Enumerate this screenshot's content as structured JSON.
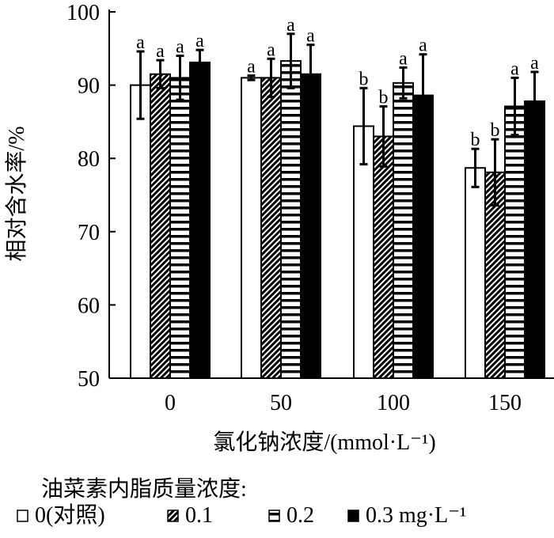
{
  "chart_data": {
    "type": "bar",
    "xlabel": "氯化钠浓度/(mmol·L⁻¹)",
    "ylabel": "相对含水率/%",
    "categories": [
      "0",
      "50",
      "100",
      "150"
    ],
    "ylim": [
      50,
      100
    ],
    "yticks": [
      "50",
      "60",
      "70",
      "80",
      "90",
      "100"
    ],
    "grid": false,
    "legend_title": "油菜素内脂质量浓度:",
    "legend_unit": "mg·L⁻¹",
    "legend_placement": "bottom",
    "series": [
      {
        "name": "0(对照)",
        "pattern": "white",
        "values": [
          90.0,
          91.0,
          84.4,
          78.7
        ],
        "errors": [
          4.6,
          0.3,
          5.2,
          2.6
        ],
        "letters": [
          "a",
          "a",
          "b",
          "b"
        ]
      },
      {
        "name": "0.1",
        "pattern": "diagonal",
        "values": [
          91.5,
          91.0,
          83.0,
          78.1
        ],
        "errors": [
          1.9,
          2.6,
          4.1,
          4.5
        ],
        "letters": [
          "a",
          "a",
          "b",
          "b"
        ]
      },
      {
        "name": "0.2",
        "pattern": "horizontal",
        "values": [
          91.0,
          93.3,
          90.3,
          87.1
        ],
        "errors": [
          3.0,
          3.7,
          2.1,
          3.9
        ],
        "letters": [
          "a",
          "a",
          "a",
          "a"
        ]
      },
      {
        "name": "0.3",
        "pattern": "black",
        "values": [
          93.1,
          91.5,
          88.6,
          87.8
        ],
        "errors": [
          1.7,
          4.0,
          5.6,
          4.0
        ],
        "letters": [
          "a",
          "a",
          "a",
          "a"
        ]
      }
    ]
  }
}
